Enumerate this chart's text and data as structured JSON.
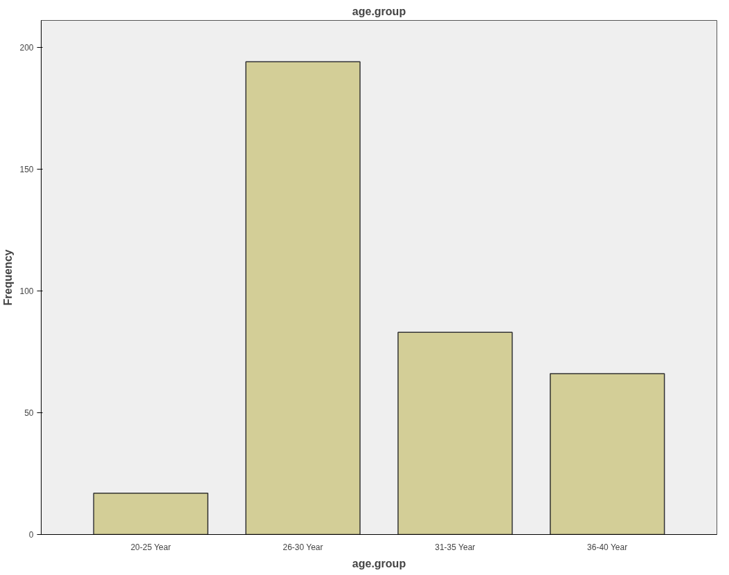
{
  "chart_data": {
    "type": "bar",
    "title": "age.group",
    "xlabel": "age.group",
    "ylabel": "Frequency",
    "categories": [
      "20-25 Year",
      "26-30 Year",
      "31-35 Year",
      "36-40 Year"
    ],
    "values": [
      17,
      194,
      83,
      66
    ],
    "color": "#d3ce97",
    "ylim": [
      0,
      211
    ],
    "yticks": [
      0,
      50,
      100,
      150,
      200
    ],
    "grid": false
  }
}
